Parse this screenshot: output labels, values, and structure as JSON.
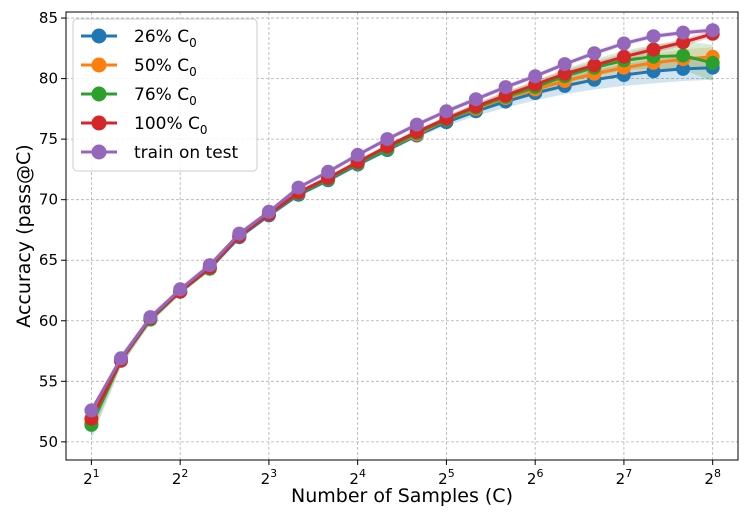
{
  "chart_data": {
    "type": "line",
    "title": "",
    "xlabel": "Number of Samples (C)",
    "ylabel": "Accuracy (pass@C)",
    "x_scale": "log2",
    "x": [
      2,
      2.52,
      3.17,
      4,
      5.04,
      6.35,
      8,
      10.08,
      12.7,
      16,
      20.16,
      25.4,
      32,
      40.3,
      50.8,
      64,
      80.6,
      101.6,
      128,
      161.3,
      203.2,
      256
    ],
    "xlim": [
      1.64,
      312
    ],
    "xticks": [
      2,
      4,
      8,
      16,
      32,
      64,
      128,
      256
    ],
    "xtick_labels": [
      {
        "base": "2",
        "exp": "1"
      },
      {
        "base": "2",
        "exp": "2"
      },
      {
        "base": "2",
        "exp": "3"
      },
      {
        "base": "2",
        "exp": "4"
      },
      {
        "base": "2",
        "exp": "5"
      },
      {
        "base": "2",
        "exp": "6"
      },
      {
        "base": "2",
        "exp": "7"
      },
      {
        "base": "2",
        "exp": "8"
      }
    ],
    "ylim": [
      48.5,
      85.5
    ],
    "yticks": [
      50,
      55,
      60,
      65,
      70,
      75,
      80,
      85
    ],
    "ytick_labels": [
      "50",
      "55",
      "60",
      "65",
      "70",
      "75",
      "80",
      "85"
    ],
    "grid": true,
    "legend_position": "upper-left",
    "series": [
      {
        "name": "26% C",
        "subscript": "0",
        "color": "#1f77b4",
        "values": [
          51.5,
          56.8,
          60.1,
          62.4,
          64.3,
          66.9,
          68.7,
          70.4,
          71.6,
          72.9,
          74.1,
          75.3,
          76.4,
          77.3,
          78.1,
          78.8,
          79.4,
          79.9,
          80.3,
          80.6,
          80.8,
          80.9
        ],
        "band": [
          1.0,
          0.5,
          0.3,
          0.2,
          0.2,
          0.2,
          0.2,
          0.2,
          0.2,
          0.2,
          0.2,
          0.2,
          0.3,
          0.4,
          0.5,
          0.6,
          0.7,
          0.8,
          0.9,
          1.0,
          1.0,
          1.0
        ]
      },
      {
        "name": "50% C",
        "subscript": "0",
        "color": "#ff7f0e",
        "values": [
          51.6,
          56.8,
          60.2,
          62.4,
          64.4,
          67.0,
          68.8,
          70.5,
          71.7,
          73.0,
          74.2,
          75.4,
          76.6,
          77.5,
          78.4,
          79.1,
          79.8,
          80.4,
          80.9,
          81.3,
          81.6,
          81.8
        ],
        "band": [
          0.8,
          0.4,
          0.3,
          0.2,
          0.2,
          0.2,
          0.2,
          0.2,
          0.2,
          0.2,
          0.2,
          0.2,
          0.3,
          0.3,
          0.4,
          0.5,
          0.6,
          0.6,
          0.7,
          0.8,
          0.8,
          0.8
        ]
      },
      {
        "name": "76% C",
        "subscript": "0",
        "color": "#2ca02c",
        "values": [
          51.4,
          56.7,
          60.1,
          62.4,
          64.3,
          67.0,
          68.8,
          70.5,
          71.7,
          73.0,
          74.2,
          75.5,
          76.6,
          77.6,
          78.5,
          79.3,
          80.2,
          80.9,
          81.5,
          81.8,
          81.9,
          81.3
        ],
        "band": [
          1.2,
          0.5,
          0.3,
          0.2,
          0.2,
          0.2,
          0.2,
          0.2,
          0.2,
          0.2,
          0.2,
          0.2,
          0.3,
          0.3,
          0.4,
          0.5,
          0.6,
          0.7,
          0.8,
          1.0,
          1.2,
          1.5
        ]
      },
      {
        "name": "100% C",
        "subscript": "0",
        "color": "#d62728",
        "values": [
          51.9,
          56.7,
          60.2,
          62.4,
          64.4,
          67.0,
          68.8,
          70.6,
          71.8,
          73.1,
          74.4,
          75.6,
          76.7,
          77.7,
          78.6,
          79.5,
          80.4,
          81.1,
          81.8,
          82.4,
          83.0,
          83.7
        ],
        "band": [
          0.6,
          0.3,
          0.2,
          0.2,
          0.2,
          0.2,
          0.2,
          0.2,
          0.2,
          0.2,
          0.2,
          0.2,
          0.2,
          0.3,
          0.3,
          0.3,
          0.3,
          0.3,
          0.3,
          0.3,
          0.3,
          0.3
        ]
      },
      {
        "name": "train on test",
        "subscript": "",
        "color": "#9467bd",
        "values": [
          52.6,
          56.9,
          60.3,
          62.6,
          64.6,
          67.2,
          69.0,
          71.0,
          72.3,
          73.7,
          75.0,
          76.2,
          77.3,
          78.3,
          79.3,
          80.2,
          81.2,
          82.1,
          82.9,
          83.5,
          83.8,
          84.0
        ],
        "band": [
          0.2,
          0.2,
          0.2,
          0.2,
          0.2,
          0.2,
          0.2,
          0.2,
          0.2,
          0.2,
          0.2,
          0.2,
          0.2,
          0.2,
          0.2,
          0.2,
          0.2,
          0.2,
          0.2,
          0.2,
          0.2,
          0.2
        ]
      }
    ]
  }
}
